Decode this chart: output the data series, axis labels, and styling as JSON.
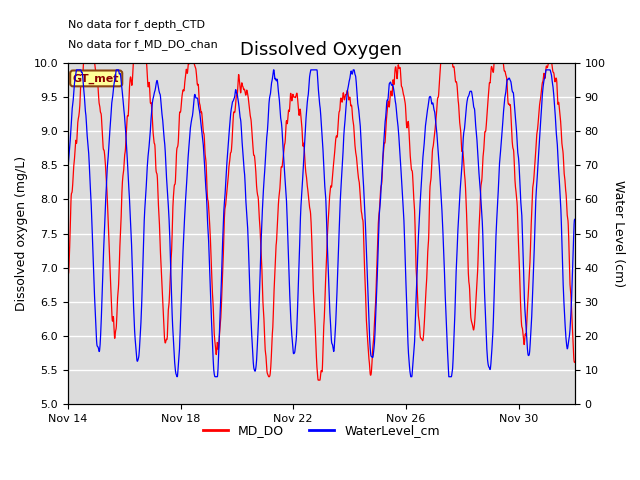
{
  "title": "Dissolved Oxygen",
  "ylabel_left": "Dissolved oxygen (mg/L)",
  "ylabel_right": "Water Level (cm)",
  "ylim_left": [
    5.0,
    10.0
  ],
  "ylim_right": [
    0,
    100
  ],
  "yticks_left": [
    5.0,
    5.5,
    6.0,
    6.5,
    7.0,
    7.5,
    8.0,
    8.5,
    9.0,
    9.5,
    10.0
  ],
  "yticks_right": [
    0,
    10,
    20,
    30,
    40,
    50,
    60,
    70,
    80,
    90,
    100
  ],
  "xtick_labels": [
    "Nov 14",
    "Nov 18",
    "Nov 22",
    "Nov 26",
    "Nov 30"
  ],
  "xtick_positions": [
    0,
    4,
    8,
    12,
    16
  ],
  "xlim": [
    0,
    18
  ],
  "text_no_data_1": "No data for f_depth_CTD",
  "text_no_data_2": "No data for f_MD_DO_chan",
  "legend_label_gt": "GT_met",
  "legend_label_md": "MD_DO",
  "legend_label_wl": "WaterLevel_cm",
  "color_red": "#FF0000",
  "color_blue": "#0000FF",
  "color_gt_box_bg": "#FFFF99",
  "color_gt_box_border": "#8B4513",
  "plot_bg_color": "#DCDCDC",
  "grid_color": "#FFFFFF",
  "title_fontsize": 13,
  "axis_label_fontsize": 9,
  "tick_fontsize": 8,
  "annotation_fontsize": 8,
  "linewidth_signal": 0.9,
  "linewidth_legend": 2.0
}
